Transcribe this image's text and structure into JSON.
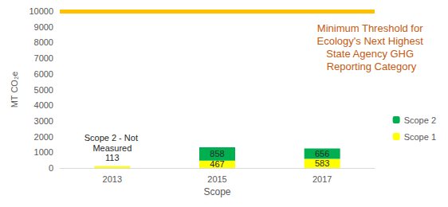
{
  "chart_data": {
    "type": "bar",
    "categories": [
      "2013",
      "2015",
      "2017"
    ],
    "series": [
      {
        "name": "Scope 1",
        "color": "#ffff00",
        "values": [
          113,
          467,
          583
        ]
      },
      {
        "name": "Scope 2",
        "color": "#00b050",
        "values": [
          null,
          858,
          656
        ]
      }
    ],
    "stacked": true,
    "data_labels": true,
    "xlabel": "Scope",
    "ylabel": "MT CO₂e",
    "ylim": [
      0,
      10000
    ],
    "yticks": [
      0,
      1000,
      2000,
      3000,
      4000,
      5000,
      6000,
      7000,
      8000,
      9000,
      10000
    ],
    "grid": false,
    "legend": "right",
    "threshold": {
      "value": 10000,
      "color": "#ffc000",
      "label": "Minimum Threshold for Ecology's Next Highest State Agency GHG Reporting Category"
    },
    "annotations": [
      {
        "text": "Scope 2 - Not Measured",
        "x": "2013"
      }
    ]
  }
}
